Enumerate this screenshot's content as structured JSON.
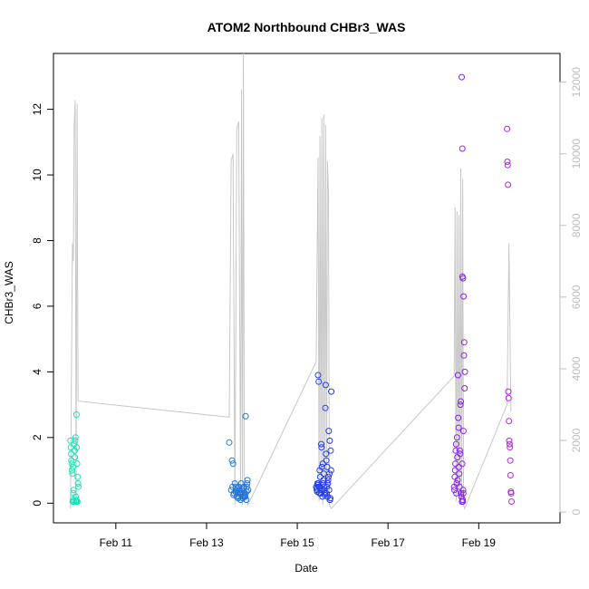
{
  "chart_data": {
    "type": "scatter",
    "title": "ATOM2 Northbound CHBr3_WAS",
    "xlabel": "Date",
    "ylabel": "CHBr3_WAS",
    "xlim": [
      "2018-02-09 15:00",
      "2018-02-20 19:00"
    ],
    "ylim": [
      -0.6,
      13.7
    ],
    "y2lim": [
      -300,
      12800
    ],
    "x_ticks": [
      {
        "date": "2018-02-11",
        "label": "Feb 11"
      },
      {
        "date": "2018-02-13",
        "label": "Feb 13"
      },
      {
        "date": "2018-02-15",
        "label": "Feb 15"
      },
      {
        "date": "2018-02-17",
        "label": "Feb 17"
      },
      {
        "date": "2018-02-19",
        "label": "Feb 19"
      }
    ],
    "y_ticks": [
      0,
      2,
      4,
      6,
      8,
      10,
      12
    ],
    "y2_ticks": [
      0,
      2000,
      4000,
      6000,
      8000,
      10000,
      12000
    ],
    "grid": false,
    "legend": "none",
    "colors": {
      "line": "#c8c8c8",
      "axis": "#000000",
      "right_axis": "#bdbdbd",
      "points_start": "#19f0b4",
      "points_end": "#e61ee6"
    },
    "line_series": [
      {
        "x": "2018-02-10 00:00",
        "y2": 100
      },
      {
        "x": "2018-02-10 01:00",
        "y2": 7500
      },
      {
        "x": "2018-02-10 01:30",
        "y2": 7000
      },
      {
        "x": "2018-02-10 02:00",
        "y2": 10800
      },
      {
        "x": "2018-02-10 02:30",
        "y2": 11500
      },
      {
        "x": "2018-02-10 03:00",
        "y2": 400
      },
      {
        "x": "2018-02-10 03:30",
        "y2": 11400
      },
      {
        "x": "2018-02-10 04:00",
        "y2": 3100
      },
      {
        "x": "2018-02-13 12:00",
        "y2": 2650
      },
      {
        "x": "2018-02-13 13:00",
        "y2": 9800
      },
      {
        "x": "2018-02-13 14:00",
        "y2": 10000
      },
      {
        "x": "2018-02-13 15:00",
        "y2": 200
      },
      {
        "x": "2018-02-13 16:00",
        "y2": 10700
      },
      {
        "x": "2018-02-13 17:00",
        "y2": 10900
      },
      {
        "x": "2018-02-13 18:00",
        "y2": 400
      },
      {
        "x": "2018-02-13 18:30",
        "y2": 11800
      },
      {
        "x": "2018-02-13 19:00",
        "y2": 200
      },
      {
        "x": "2018-02-13 19:30",
        "y2": 12800
      },
      {
        "x": "2018-02-13 20:00",
        "y2": 300
      },
      {
        "x": "2018-02-13 21:00",
        "y2": 500
      },
      {
        "x": "2018-02-13 22:00",
        "y2": 200
      },
      {
        "x": "2018-02-15 10:00",
        "y2": 4200
      },
      {
        "x": "2018-02-15 11:00",
        "y2": 9900
      },
      {
        "x": "2018-02-15 11:30",
        "y2": 300
      },
      {
        "x": "2018-02-15 12:00",
        "y2": 10500
      },
      {
        "x": "2018-02-15 12:30",
        "y2": 500
      },
      {
        "x": "2018-02-15 13:00",
        "y2": 11000
      },
      {
        "x": "2018-02-15 13:30",
        "y2": 200
      },
      {
        "x": "2018-02-15 14:00",
        "y2": 11100
      },
      {
        "x": "2018-02-15 14:30",
        "y2": 400
      },
      {
        "x": "2018-02-15 15:00",
        "y2": 10800
      },
      {
        "x": "2018-02-15 15:30",
        "y2": 300
      },
      {
        "x": "2018-02-15 16:00",
        "y2": 9800
      },
      {
        "x": "2018-02-15 16:30",
        "y2": 8900
      },
      {
        "x": "2018-02-15 17:00",
        "y2": 200
      },
      {
        "x": "2018-02-15 18:00",
        "y2": 100
      },
      {
        "x": "2018-02-18 11:00",
        "y2": 3800
      },
      {
        "x": "2018-02-18 11:30",
        "y2": 8500
      },
      {
        "x": "2018-02-18 12:00",
        "y2": 300
      },
      {
        "x": "2018-02-18 12:30",
        "y2": 8400
      },
      {
        "x": "2018-02-18 13:00",
        "y2": 500
      },
      {
        "x": "2018-02-18 13:30",
        "y2": 8300
      },
      {
        "x": "2018-02-18 14:00",
        "y2": 200
      },
      {
        "x": "2018-02-18 14:30",
        "y2": 9600
      },
      {
        "x": "2018-02-18 15:00",
        "y2": 400
      },
      {
        "x": "2018-02-18 15:30",
        "y2": 9300
      },
      {
        "x": "2018-02-18 16:00",
        "y2": 200
      },
      {
        "x": "2018-02-18 16:30",
        "y2": 100
      },
      {
        "x": "2018-02-19 15:00",
        "y2": 3000
      },
      {
        "x": "2018-02-19 16:00",
        "y2": 7500
      },
      {
        "x": "2018-02-19 17:00",
        "y2": 2800
      }
    ],
    "series": [
      {
        "x": [
          "2018-02-10 00:00",
          "2018-02-10 00:10",
          "2018-02-10 00:20",
          "2018-02-10 00:30",
          "2018-02-10 00:40",
          "2018-02-10 00:50",
          "2018-02-10 01:00",
          "2018-02-10 01:10",
          "2018-02-10 01:20",
          "2018-02-10 01:30",
          "2018-02-10 01:40",
          "2018-02-10 01:50",
          "2018-02-10 02:00",
          "2018-02-10 02:10",
          "2018-02-10 02:20",
          "2018-02-10 02:30",
          "2018-02-10 02:40",
          "2018-02-10 02:50",
          "2018-02-10 03:00",
          "2018-02-10 03:10",
          "2018-02-10 03:20",
          "2018-02-10 03:30",
          "2018-02-10 03:40",
          "2018-02-10 03:50",
          "2018-02-10 04:00",
          "2018-02-10 04:10",
          "2018-02-10 01:15",
          "2018-02-10 02:15",
          "2018-02-10 02:45",
          "2018-02-10 03:15"
        ],
        "values": [
          1.9,
          1.7,
          1.5,
          1.3,
          1.2,
          1.0,
          0.9,
          0.05,
          0.1,
          0.3,
          0.4,
          0.05,
          1.8,
          1.6,
          1.4,
          1.9,
          2.0,
          0.05,
          0.1,
          2.7,
          1.7,
          1.2,
          0.05,
          0.8,
          0.6,
          0.5,
          1.1,
          1.6,
          0.2,
          0.05
        ]
      },
      {
        "x": [
          "2018-02-13 12:00",
          "2018-02-13 13:00",
          "2018-02-13 13:30",
          "2018-02-13 14:00",
          "2018-02-13 14:30",
          "2018-02-13 15:00",
          "2018-02-13 15:30",
          "2018-02-13 16:00",
          "2018-02-13 16:20",
          "2018-02-13 16:40",
          "2018-02-13 17:00",
          "2018-02-13 17:20",
          "2018-02-13 17:40",
          "2018-02-13 18:00",
          "2018-02-13 18:20",
          "2018-02-13 18:40",
          "2018-02-13 19:00",
          "2018-02-13 19:20",
          "2018-02-13 19:40",
          "2018-02-13 20:00",
          "2018-02-13 20:20",
          "2018-02-13 20:40",
          "2018-02-13 21:00",
          "2018-02-13 21:20",
          "2018-02-13 21:40",
          "2018-02-13 22:00",
          "2018-02-13 14:15",
          "2018-02-13 15:15",
          "2018-02-13 16:10",
          "2018-02-13 17:10",
          "2018-02-13 18:10",
          "2018-02-13 19:10",
          "2018-02-13 20:10",
          "2018-02-13 21:10",
          "2018-02-13 13:45",
          "2018-02-13 15:45",
          "2018-02-13 17:30",
          "2018-02-13 19:30",
          "2018-02-13 20:30",
          "2018-02-13 21:30"
        ],
        "values": [
          1.85,
          0.4,
          1.3,
          1.2,
          0.3,
          0.6,
          0.5,
          0.2,
          0.3,
          0.15,
          0.5,
          0.4,
          0.3,
          0.1,
          0.6,
          0.4,
          0.2,
          0.3,
          0.5,
          0.2,
          0.3,
          2.65,
          0.1,
          0.5,
          0.7,
          0.4,
          0.25,
          0.35,
          0.45,
          0.2,
          0.3,
          0.15,
          0.25,
          0.35,
          0.5,
          0.4,
          0.3,
          0.45,
          0.2,
          0.6
        ]
      },
      {
        "x": [
          "2018-02-15 10:00",
          "2018-02-15 10:20",
          "2018-02-15 10:40",
          "2018-02-15 11:00",
          "2018-02-15 11:20",
          "2018-02-15 11:40",
          "2018-02-15 12:00",
          "2018-02-15 12:20",
          "2018-02-15 12:40",
          "2018-02-15 13:00",
          "2018-02-15 13:20",
          "2018-02-15 13:40",
          "2018-02-15 14:00",
          "2018-02-15 14:20",
          "2018-02-15 14:40",
          "2018-02-15 15:00",
          "2018-02-15 15:20",
          "2018-02-15 15:40",
          "2018-02-15 16:00",
          "2018-02-15 16:20",
          "2018-02-15 16:40",
          "2018-02-15 17:00",
          "2018-02-15 17:20",
          "2018-02-15 17:40",
          "2018-02-15 18:00",
          "2018-02-15 10:10",
          "2018-02-15 10:30",
          "2018-02-15 10:50",
          "2018-02-15 11:10",
          "2018-02-15 11:30",
          "2018-02-15 11:50",
          "2018-02-15 12:10",
          "2018-02-15 12:30",
          "2018-02-15 12:50",
          "2018-02-15 13:10",
          "2018-02-15 13:30",
          "2018-02-15 13:50",
          "2018-02-15 14:10",
          "2018-02-15 14:30",
          "2018-02-15 14:50",
          "2018-02-15 15:10",
          "2018-02-15 15:30",
          "2018-02-15 15:50",
          "2018-02-15 16:10",
          "2018-02-15 16:30",
          "2018-02-15 16:50",
          "2018-02-15 17:10",
          "2018-02-15 17:30",
          "2018-02-15 17:50"
        ],
        "values": [
          0.5,
          0.4,
          0.6,
          3.9,
          3.7,
          0.3,
          0.5,
          0.4,
          1.8,
          1.1,
          0.2,
          0.6,
          0.9,
          0.4,
          0.3,
          3.6,
          1.3,
          0.5,
          0.2,
          0.7,
          2.2,
          0.9,
          0.1,
          1.6,
          3.4,
          0.45,
          0.35,
          0.55,
          0.6,
          0.5,
          1.0,
          0.8,
          0.3,
          1.7,
          0.4,
          1.2,
          0.7,
          0.5,
          0.25,
          2.9,
          1.5,
          0.3,
          1.1,
          0.6,
          0.8,
          0.4,
          1.9,
          0.15,
          1.0
        ]
      },
      {
        "x": [
          "2018-02-18 11:00",
          "2018-02-18 11:20",
          "2018-02-18 11:40",
          "2018-02-18 12:00",
          "2018-02-18 12:20",
          "2018-02-18 12:40",
          "2018-02-18 13:00",
          "2018-02-18 13:20",
          "2018-02-18 13:40",
          "2018-02-18 14:00",
          "2018-02-18 14:20",
          "2018-02-18 14:40",
          "2018-02-18 15:00",
          "2018-02-18 15:20",
          "2018-02-18 15:40",
          "2018-02-18 16:00",
          "2018-02-18 16:20",
          "2018-02-18 16:40",
          "2018-02-18 11:10",
          "2018-02-18 11:30",
          "2018-02-18 11:50",
          "2018-02-18 12:10",
          "2018-02-18 12:30",
          "2018-02-18 12:50",
          "2018-02-18 13:10",
          "2018-02-18 13:30",
          "2018-02-18 13:50",
          "2018-02-18 14:10",
          "2018-02-18 14:30",
          "2018-02-18 14:50",
          "2018-02-18 15:10",
          "2018-02-18 15:30",
          "2018-02-18 15:50",
          "2018-02-18 16:10",
          "2018-02-18 16:30",
          "2018-02-18 15:25",
          "2018-02-18 15:35",
          "2018-02-18 15:45",
          "2018-02-18 15:55",
          "2018-02-18 15:15"
        ],
        "values": [
          0.5,
          0.8,
          1.2,
          1.8,
          0.6,
          1.4,
          3.9,
          2.3,
          0.9,
          1.6,
          3.0,
          0.3,
          12.98,
          10.8,
          6.85,
          6.3,
          4.9,
          4.0,
          0.4,
          1.0,
          1.6,
          0.3,
          2.0,
          0.7,
          2.6,
          1.1,
          0.5,
          1.5,
          3.1,
          0.2,
          0.05,
          0.1,
          0.3,
          4.5,
          3.5,
          6.9,
          0.05,
          0.4,
          2.2,
          1.2
        ]
      },
      {
        "x": [
          "2018-02-19 15:00",
          "2018-02-19 15:10",
          "2018-02-19 15:20",
          "2018-02-19 15:30",
          "2018-02-19 15:40",
          "2018-02-19 15:50",
          "2018-02-19 16:00",
          "2018-02-19 16:10",
          "2018-02-19 16:20",
          "2018-02-19 16:30",
          "2018-02-19 16:40",
          "2018-02-19 16:50",
          "2018-02-19 17:00",
          "2018-02-19 17:10",
          "2018-02-19 17:20"
        ],
        "values": [
          11.4,
          10.4,
          10.3,
          9.7,
          3.4,
          3.2,
          2.5,
          1.9,
          1.8,
          1.7,
          1.3,
          0.85,
          0.35,
          0.3,
          0.05
        ]
      }
    ]
  }
}
